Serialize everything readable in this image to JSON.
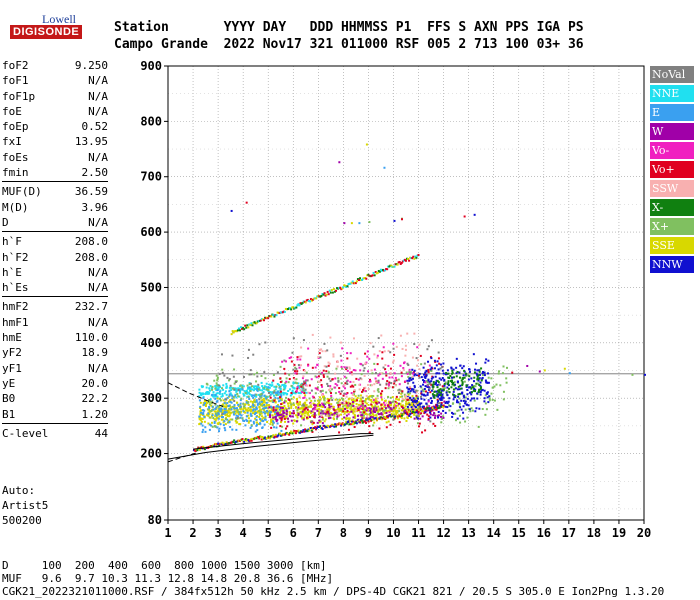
{
  "logo": {
    "brand": "Lowell",
    "name": "DIGISONDE"
  },
  "header": {
    "row1": "Station       YYYY DAY   DDD HHMMSS P1  FFS S AXN PPS IGA PS",
    "row2": "Campo Grande  2022 Nov17 321 011000 RSF 005 2 713 100 03+ 36"
  },
  "params": {
    "g1": [
      {
        "k": "foF2",
        "v": "9.250"
      },
      {
        "k": "foF1",
        "v": "N/A"
      },
      {
        "k": "foF1p",
        "v": "N/A"
      },
      {
        "k": "foE",
        "v": "N/A"
      },
      {
        "k": "foEp",
        "v": "0.52"
      },
      {
        "k": "fxI",
        "v": "13.95"
      },
      {
        "k": "foEs",
        "v": "N/A"
      },
      {
        "k": "fmin",
        "v": "2.50"
      }
    ],
    "g2": [
      {
        "k": "MUF(D)",
        "v": "36.59"
      },
      {
        "k": "M(D)",
        "v": "3.96"
      },
      {
        "k": "D",
        "v": "N/A"
      }
    ],
    "g3": [
      {
        "k": "h`F",
        "v": "208.0"
      },
      {
        "k": "h`F2",
        "v": "208.0"
      },
      {
        "k": "h`E",
        "v": "N/A"
      },
      {
        "k": "h`Es",
        "v": "N/A"
      }
    ],
    "g4": [
      {
        "k": "hmF2",
        "v": "232.7"
      },
      {
        "k": "hmF1",
        "v": "N/A"
      },
      {
        "k": "hmE",
        "v": "110.0"
      },
      {
        "k": "yF2",
        "v": "18.9"
      },
      {
        "k": "yF1",
        "v": "N/A"
      },
      {
        "k": "yE",
        "v": "20.0"
      },
      {
        "k": "B0",
        "v": "22.2"
      },
      {
        "k": "B1",
        "v": "1.20"
      }
    ],
    "g5": [
      {
        "k": "C-level",
        "v": "44"
      }
    ]
  },
  "auto": {
    "l1": "Auto:",
    "l2": "Artist5",
    "l3": "500200"
  },
  "legend": [
    {
      "label": "NoVal",
      "color": "#808080"
    },
    {
      "label": "NNE",
      "color": "#20e0f0"
    },
    {
      "label": "E",
      "color": "#3aa0f0"
    },
    {
      "label": "W",
      "color": "#a000a8"
    },
    {
      "label": "Vo-",
      "color": "#f020c0"
    },
    {
      "label": "Vo+",
      "color": "#e00020"
    },
    {
      "label": "SSW",
      "color": "#f8b0b0"
    },
    {
      "label": "X-",
      "color": "#108010"
    },
    {
      "label": "X+",
      "color": "#80c060"
    },
    {
      "label": "SSE",
      "color": "#d8d800"
    },
    {
      "label": "NNW",
      "color": "#1010d0"
    }
  ],
  "footer": {
    "l1": "D     100  200  400  600  800 1000 1500 3000 [km]",
    "l2": "MUF   9.6  9.7 10.3 11.3 12.8 14.8 20.8 36.6 [MHz]",
    "l3": "CGK21_2022321011000.RSF / 384fx512h 50 kHz 2.5 km / DPS-4D CGK21 821 / 20.5 S 305.0 E Ion2Png 1.3.20"
  },
  "chart_data": {
    "type": "scatter",
    "xlim": [
      1,
      20
    ],
    "ylim": [
      80,
      900
    ],
    "x_ticks": [
      1,
      2,
      3,
      4,
      5,
      6,
      7,
      8,
      9,
      10,
      11,
      12,
      13,
      14,
      15,
      16,
      17,
      18,
      19,
      20
    ],
    "y_ticks": [
      80,
      200,
      300,
      400,
      500,
      600,
      700,
      800,
      900
    ],
    "grid": true,
    "xlabel": "",
    "ylabel": "",
    "hline": 344,
    "virtual_height_trace": [
      [
        2.0,
        208
      ],
      [
        3,
        218
      ],
      [
        4,
        226
      ],
      [
        5,
        232
      ],
      [
        6,
        240
      ],
      [
        7,
        248
      ],
      [
        8,
        256
      ],
      [
        9,
        262
      ],
      [
        10,
        270
      ],
      [
        11,
        280
      ],
      [
        12,
        288
      ]
    ],
    "profile_line_upper": [
      [
        2.0,
        208
      ],
      [
        4,
        218
      ],
      [
        6,
        226
      ],
      [
        7.5,
        232
      ],
      [
        8.7,
        236
      ],
      [
        9.2,
        236
      ]
    ],
    "profile_line_lower": [
      [
        1.0,
        190
      ],
      [
        2.5,
        202
      ],
      [
        4.5,
        213
      ],
      [
        6.5,
        222
      ],
      [
        8,
        228
      ],
      [
        9.2,
        233
      ]
    ],
    "dashed_upper": [
      [
        1.0,
        328
      ],
      [
        1.8,
        310
      ],
      [
        2.6,
        295
      ],
      [
        3.2,
        285
      ]
    ],
    "dashed_lower": [
      [
        1.0,
        185
      ],
      [
        1.6,
        194
      ],
      [
        2.2,
        202
      ]
    ],
    "echo_clusters": [
      {
        "name": "SSE",
        "color": "#d8d800",
        "x": [
          2.2,
          11.0
        ],
        "y": [
          255,
          310
        ],
        "n": 900
      },
      {
        "name": "NNE",
        "color": "#20e0f0",
        "x": [
          2.2,
          6.5
        ],
        "y": [
          300,
          330
        ],
        "n": 250
      },
      {
        "name": "E",
        "color": "#3aa0f0",
        "x": [
          2.2,
          5.5
        ],
        "y": [
          240,
          330
        ],
        "n": 220
      },
      {
        "name": "X+",
        "color": "#80c060",
        "x": [
          2.5,
          14.5
        ],
        "y": [
          250,
          380
        ],
        "n": 350
      },
      {
        "name": "W",
        "color": "#a000a8",
        "x": [
          5.0,
          12.0
        ],
        "y": [
          255,
          300
        ],
        "n": 180
      },
      {
        "name": "Vo+",
        "color": "#e00020",
        "x": [
          5.0,
          12.0
        ],
        "y": [
          240,
          400
        ],
        "n": 200
      },
      {
        "name": "NNW",
        "color": "#1010d0",
        "x": [
          10.5,
          13.8
        ],
        "y": [
          265,
          390
        ],
        "n": 320
      },
      {
        "name": "Vo-",
        "color": "#f020c0",
        "x": [
          5.5,
          11.5
        ],
        "y": [
          260,
          420
        ],
        "n": 120
      },
      {
        "name": "SSW",
        "color": "#f8b0b0",
        "x": [
          6.0,
          11.0
        ],
        "y": [
          270,
          440
        ],
        "n": 120
      },
      {
        "name": "NoVal",
        "color": "#808080",
        "x": [
          3.0,
          12.0
        ],
        "y": [
          260,
          440
        ],
        "n": 120
      },
      {
        "name": "X-",
        "color": "#108010",
        "x": [
          11.5,
          13.5
        ],
        "y": [
          300,
          360
        ],
        "n": 90
      }
    ],
    "second_hop_trace": {
      "from": [
        3.5,
        420
      ],
      "to": [
        11.0,
        560
      ],
      "colors": [
        "#d8d800",
        "#e00020",
        "#20e0f0",
        "#108010"
      ]
    },
    "sparse_echoes": [
      [
        3.5,
        640
      ],
      [
        4.1,
        655
      ],
      [
        7.8,
        728
      ],
      [
        8.9,
        760
      ],
      [
        9.6,
        718
      ],
      [
        10.3,
        626
      ],
      [
        13.2,
        633
      ],
      [
        12.8,
        630
      ],
      [
        8.0,
        618
      ],
      [
        8.3,
        618
      ],
      [
        8.6,
        618
      ],
      [
        9.0,
        620
      ],
      [
        10.0,
        622
      ],
      [
        10.3,
        625
      ],
      [
        15.3,
        360
      ],
      [
        16.8,
        355
      ],
      [
        17.0,
        347
      ],
      [
        19.5,
        344
      ],
      [
        20.0,
        344
      ],
      [
        14.7,
        348
      ],
      [
        15.8,
        350
      ],
      [
        16.0,
        352
      ]
    ]
  }
}
